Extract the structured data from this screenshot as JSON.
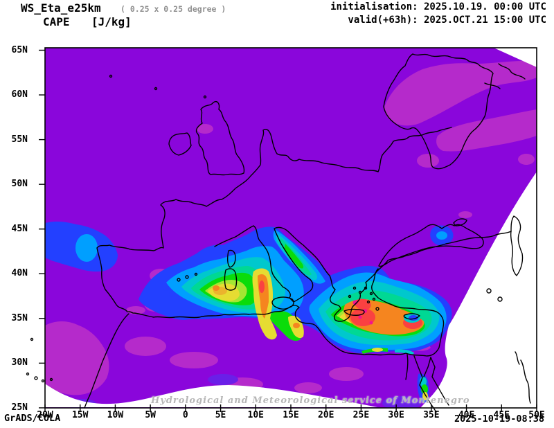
{
  "header": {
    "model": "WS_Eta_e25km",
    "resolution": "( 0.25 x 0.25 degree )",
    "variable": "CAPE",
    "units": "[J/kg]",
    "init_line": "initialisation: 2025.10.19. 00:00 UTC",
    "valid_line": "valid(+63h): 2025.OCT.21 15:00 UTC"
  },
  "footer": {
    "engine": "GrADS/COLA",
    "generated": "2025-10-19-08:38"
  },
  "watermark": "Hydrological and Meteorological service of Montenegro",
  "axes": {
    "lon_ticks": [
      "20W",
      "15W",
      "10W",
      "5W",
      "0",
      "5E",
      "10E",
      "15E",
      "20E",
      "25E",
      "30E",
      "35E",
      "40E",
      "45E",
      "50E"
    ],
    "lat_ticks": [
      "65N",
      "60N",
      "55N",
      "50N",
      "45N",
      "40N",
      "35N",
      "30N",
      "25N"
    ]
  },
  "chart_data": {
    "type": "heatmap",
    "subtype": "filled_contour_weather_map",
    "variable": "CAPE",
    "units": "J/kg",
    "model": "WS_Eta_e25km",
    "grid_resolution_deg": 0.25,
    "init_time": "2025.10.19. 00:00 UTC",
    "valid_time": "2025.OCT.21 15:00 UTC",
    "forecast_hour": 63,
    "lon_range": [
      "20W",
      "50E"
    ],
    "lat_range": [
      "25N",
      "65N"
    ],
    "projection_note": "curved (fan-shaped) model domain; white no-data wedges at NE corner, SE corner beyond ~37E diagonal, and a thin arc along the southern edge",
    "colorbar_shown": false,
    "color_scale_low_to_high": [
      {
        "color": "#8A06DB",
        "meaning": "background / near-zero CAPE"
      },
      {
        "color": "#B52ACB",
        "meaning": "very low (orchid patches)"
      },
      {
        "color": "#2340FF",
        "meaning": "low"
      },
      {
        "color": "#009FFF",
        "meaning": "low-moderate"
      },
      {
        "color": "#00C8CD",
        "meaning": "moderate"
      },
      {
        "color": "#00D894",
        "meaning": "moderate"
      },
      {
        "color": "#0ADC0A",
        "meaning": "moderate-high"
      },
      {
        "color": "#A4E632",
        "meaning": "high"
      },
      {
        "color": "#E6DC32",
        "meaning": "high"
      },
      {
        "color": "#EBB32D",
        "meaning": "higher"
      },
      {
        "color": "#F5851F",
        "meaning": "very high"
      },
      {
        "color": "#FA4141",
        "meaning": "extreme"
      },
      {
        "color": "#F2138F",
        "meaning": "maximum (deep pink spots)"
      }
    ],
    "features": [
      {
        "region": "Eastern Mediterranean: south of Crete through Levantine Sea to Cyprus",
        "level": "very high to extreme (orange-red mass, deep-pink maxima near Crete/southern Aegean)"
      },
      {
        "region": "Strait of Sicily between Sardinia, Sicily and Tunisia",
        "level": "high (yellow band with orange core)"
      },
      {
        "region": "Balearic and Tyrrhenian Seas",
        "level": "moderate-high (green-yellow core, small orange spots)"
      },
      {
        "region": "Adriatic, Ionian and Aegean Seas",
        "level": "moderate (cyan-green)"
      },
      {
        "region": "Gulf of Gabes / Libyan coast",
        "level": "moderate-high (green-yellow lobe)"
      },
      {
        "region": "Atlantic west of Iberia near 45N",
        "level": "low-moderate (blue band with brighter core)"
      },
      {
        "region": "Western Black Sea",
        "level": "low-moderate (blue spot)"
      },
      {
        "region": "Nile Delta coast and Gulf of Suez",
        "level": "moderate (cyan-green-yellow sliver)"
      },
      {
        "region": "Scandinavia, SE Iberia, NW Africa, Libya/Egypt land",
        "level": "very low (orchid patches on purple background)"
      },
      {
        "region": "Rest of Europe / land areas",
        "level": "near zero (uniform purple)"
      }
    ]
  }
}
